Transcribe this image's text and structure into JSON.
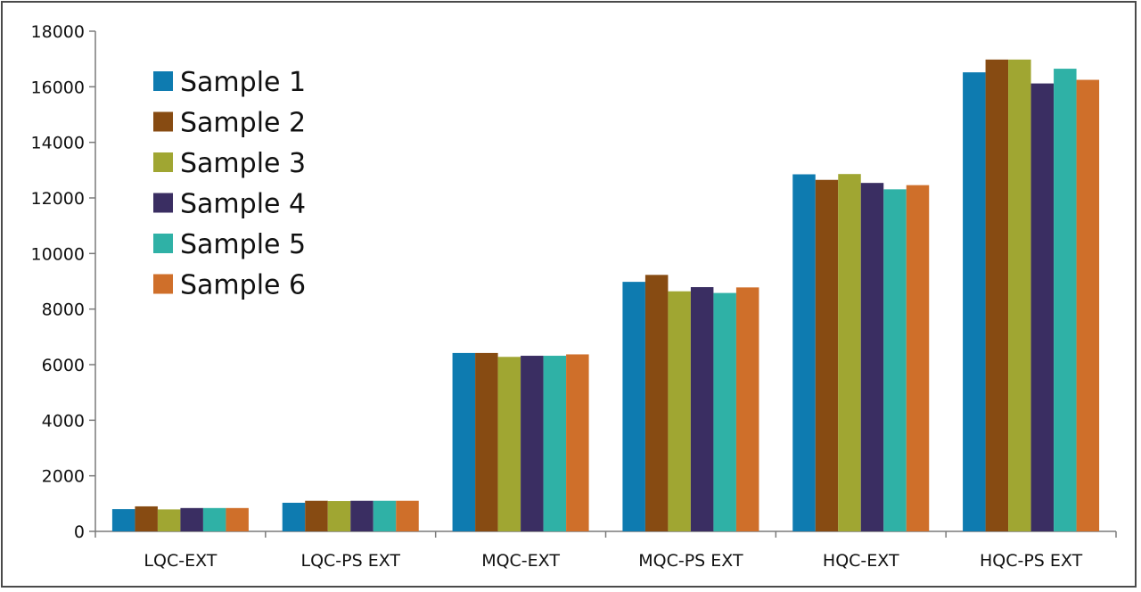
{
  "chart_data": {
    "type": "bar",
    "title": "",
    "xlabel": "",
    "ylabel": "",
    "categories": [
      "LQC-EXT",
      "LQC-PS EXT",
      "MQC-EXT",
      "MQC-PS EXT",
      "HQC-EXT",
      "HQC-PS EXT"
    ],
    "ylim": [
      0,
      18000
    ],
    "yticks": [
      0,
      2000,
      4000,
      6000,
      8000,
      10000,
      12000,
      14000,
      16000,
      18000
    ],
    "grid": false,
    "legend_position": "top-left",
    "series": [
      {
        "name": "Sample 1",
        "color": "#0e7bb0",
        "values": [
          800,
          1030,
          6420,
          8980,
          12850,
          16520
        ]
      },
      {
        "name": "Sample 2",
        "color": "#874b12",
        "values": [
          900,
          1100,
          6420,
          9230,
          12650,
          16980
        ]
      },
      {
        "name": "Sample 3",
        "color": "#a0a632",
        "values": [
          790,
          1090,
          6280,
          8640,
          12860,
          16980
        ]
      },
      {
        "name": "Sample 4",
        "color": "#3a2e62",
        "values": [
          840,
          1100,
          6320,
          8790,
          12540,
          16120
        ]
      },
      {
        "name": "Sample 5",
        "color": "#2fb1a6",
        "values": [
          840,
          1100,
          6320,
          8580,
          12310,
          16650
        ]
      },
      {
        "name": "Sample 6",
        "color": "#cf6f2a",
        "values": [
          840,
          1100,
          6370,
          8780,
          12460,
          16250
        ]
      }
    ]
  }
}
